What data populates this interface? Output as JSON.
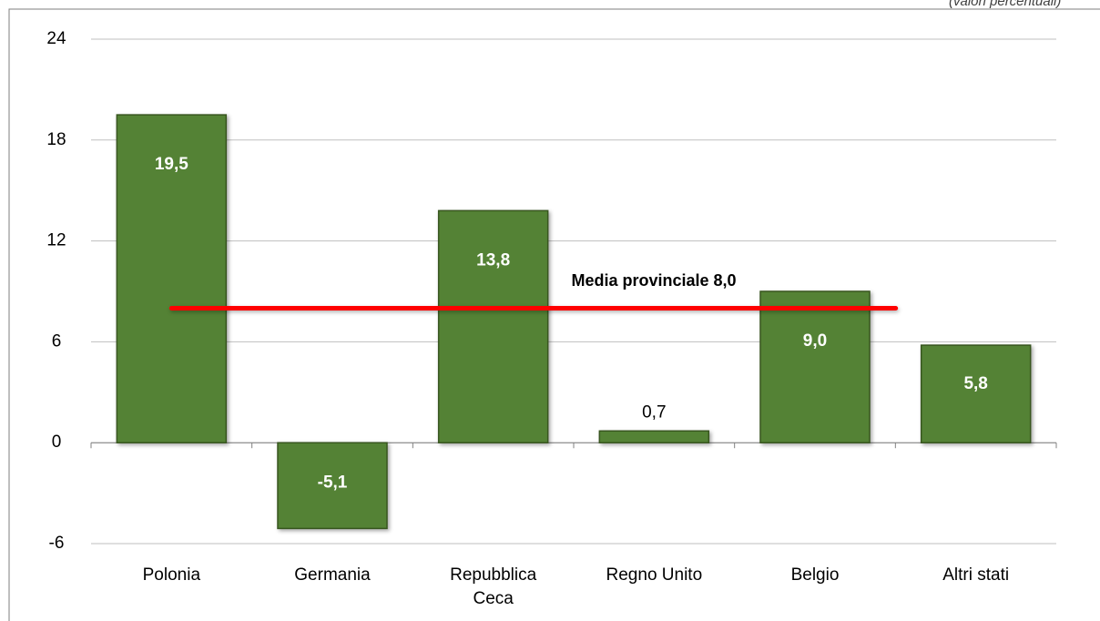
{
  "chart_data": {
    "type": "bar",
    "subtitle": "(valori percentuali)",
    "categories": [
      "Polonia",
      "Germania",
      "Repubblica Ceca",
      "Regno Unito",
      "Belgio",
      "Altri stati"
    ],
    "values": [
      19.5,
      -5.1,
      13.8,
      0.7,
      9.0,
      5.8
    ],
    "value_labels": [
      "19,5",
      "-5,1",
      "13,8",
      "0,7",
      "9,0",
      "5,8"
    ],
    "color": "#548235",
    "ylim": [
      -6,
      24
    ],
    "yticks": [
      -6,
      0,
      6,
      12,
      18,
      24
    ],
    "grid": true,
    "reference_line": {
      "value": 8.0,
      "label": "Media provinciale 8,0",
      "color": "#ff0000"
    }
  }
}
